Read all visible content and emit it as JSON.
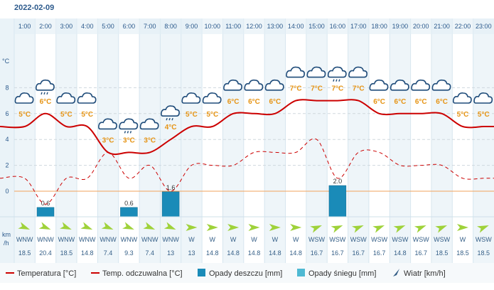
{
  "date": "2022-02-09",
  "y_unit": "°C",
  "wind_unit_line1": "km",
  "wind_unit_line2": "/h",
  "colors": {
    "temperature": "#cc0000",
    "feels_like": "#cc0000",
    "rain": "#1a8bb8",
    "snow": "#4fb9d3",
    "zero_line": "#f2a35c",
    "wind_arrow": "#9fd23a"
  },
  "chart_data": {
    "type": "line",
    "hours": [
      "1:00",
      "2:00",
      "3:00",
      "4:00",
      "5:00",
      "6:00",
      "7:00",
      "8:00",
      "9:00",
      "10:00",
      "11:00",
      "12:00",
      "13:00",
      "14:00",
      "15:00",
      "16:00",
      "17:00",
      "18:00",
      "19:00",
      "20:00",
      "21:00",
      "22:00",
      "23:00"
    ],
    "y_ticks": [
      "8",
      "6",
      "4",
      "2",
      "0"
    ],
    "ylim": [
      -2,
      10
    ],
    "series": [
      {
        "name": "Temperatura [°C]",
        "values": [
          5,
          6,
          5,
          5,
          3,
          3,
          3,
          4,
          5,
          5,
          6,
          6,
          6,
          7,
          7,
          7,
          7,
          6,
          6,
          6,
          6,
          5,
          5
        ]
      },
      {
        "name": "Temp. odczuwalna [°C]",
        "values": [
          1,
          -1,
          1,
          1,
          3,
          1,
          2,
          0,
          2,
          2,
          2,
          3,
          3,
          3,
          4,
          1,
          3,
          3,
          2,
          2,
          2,
          1,
          1
        ]
      }
    ],
    "temp_labels": [
      "5°C",
      "6°C",
      "5°C",
      "5°C",
      "3°C",
      "3°C",
      "3°C",
      "4°C",
      "5°C",
      "5°C",
      "6°C",
      "6°C",
      "6°C",
      "7°C",
      "7°C",
      "7°C",
      "7°C",
      "6°C",
      "6°C",
      "6°C",
      "6°C",
      "5°C",
      "5°C"
    ],
    "weather_icons": [
      "cloud",
      "rain-cloud",
      "cloud",
      "cloud",
      "cloud",
      "rain-cloud",
      "cloud",
      "rain-cloud",
      "cloud",
      "cloud",
      "cloud",
      "cloud",
      "cloud",
      "cloud",
      "cloud",
      "rain-cloud",
      "cloud",
      "cloud",
      "cloud",
      "cloud",
      "cloud",
      "cloud",
      "cloud"
    ],
    "rain": [
      {
        "hour_index": 1,
        "value": 0.6,
        "label": "0.6"
      },
      {
        "hour_index": 5,
        "value": 0.6,
        "label": "0.6"
      },
      {
        "hour_index": 7,
        "value": 1.6,
        "label": "1.6"
      },
      {
        "hour_index": 15,
        "value": 2.0,
        "label": "2.0"
      }
    ],
    "wind_dirs": [
      "WNW",
      "WNW",
      "WNW",
      "WNW",
      "WNW",
      "WNW",
      "WNW",
      "WNW",
      "W",
      "W",
      "W",
      "W",
      "W",
      "W",
      "WSW",
      "WSW",
      "WSW",
      "WSW",
      "WSW",
      "WSW",
      "WSW",
      "W",
      "WSW"
    ],
    "wind_speeds": [
      "18.5",
      "20.4",
      "18.5",
      "14.8",
      "7.4",
      "9.3",
      "7.4",
      "13",
      "13",
      "14.8",
      "14.8",
      "14.8",
      "14.8",
      "14.8",
      "16.7",
      "16.7",
      "16.7",
      "16.7",
      "14.8",
      "16.7",
      "18.5",
      "18.5",
      "18.5"
    ],
    "legend": [
      {
        "label": "Temperatura [°C]",
        "kind": "line",
        "color": "#cc0000"
      },
      {
        "label": "Temp. odczuwalna [°C]",
        "kind": "line",
        "color": "#cc0000"
      },
      {
        "label": "Opady deszczu [mm]",
        "kind": "box",
        "color": "#1a8bb8"
      },
      {
        "label": "Opady śniegu [mm]",
        "kind": "box",
        "color": "#4fb9d3"
      },
      {
        "label": "Wiatr [km/h]",
        "kind": "arrow",
        "color": "#355f87"
      }
    ]
  }
}
